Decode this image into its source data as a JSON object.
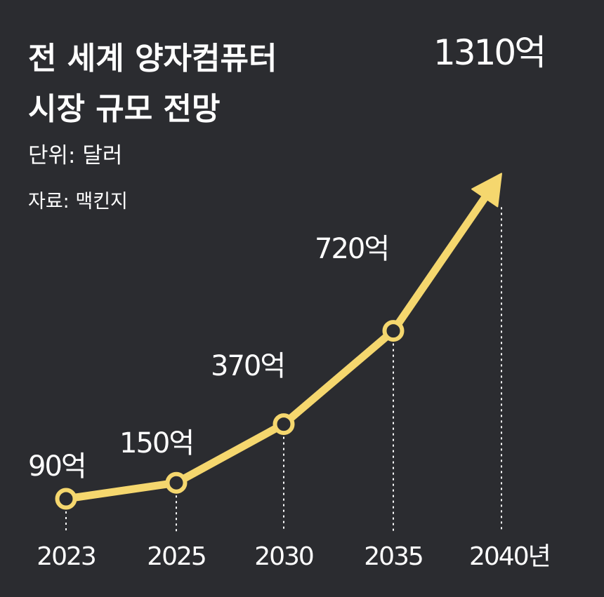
{
  "chart_data": {
    "type": "line",
    "title_lines": [
      "전 세계 양자컴퓨터",
      "시장 규모 전망"
    ],
    "unit": "단위: 달러",
    "source": "자료: 맥킨지",
    "x": [
      "2023",
      "2025",
      "2030",
      "2035",
      "2040년"
    ],
    "values": [
      90,
      150,
      370,
      720,
      1310
    ],
    "labels": [
      "90억",
      "150억",
      "370억",
      "720억",
      "1310억"
    ],
    "line_color": "#f5d76e",
    "background": "#2b2c30",
    "grid": false,
    "legend": "none"
  }
}
